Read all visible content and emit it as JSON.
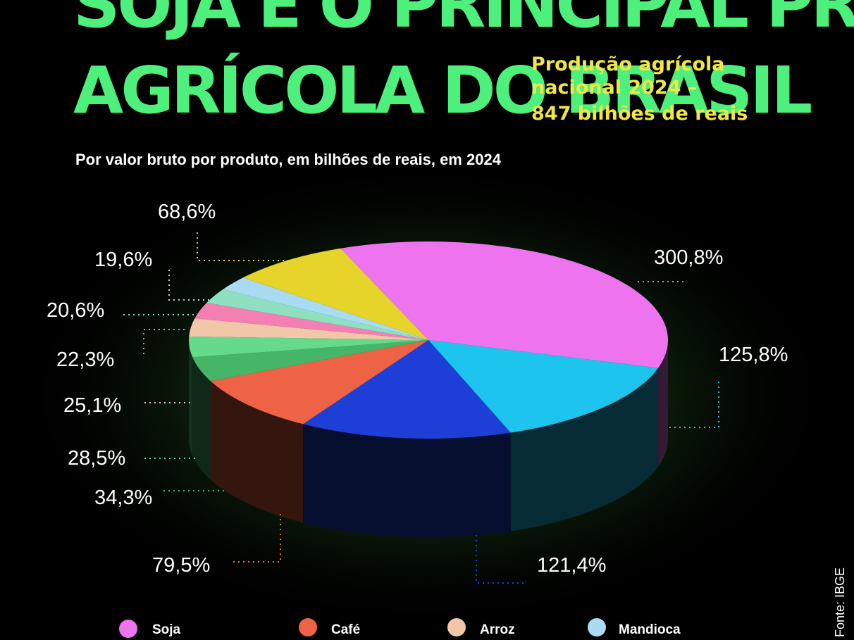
{
  "header": {
    "title_lines": [
      "SOJA É O PRINCIPAL PRODUTO",
      "AGRÍCOLA DO BRASIL"
    ],
    "subtitle_lines": [
      "Produção agrícola",
      "nacional 2024 –",
      "847 bilhões de reais"
    ]
  },
  "caption": "Por valor bruto por produto, em bilhões de reais, em 2024",
  "source": "Fonte: IBGE",
  "legend": [
    {
      "name": "Soja",
      "color": "#ee74ef"
    },
    {
      "name": "Café",
      "color": "#ee6345"
    },
    {
      "name": "Arroz",
      "color": "#f2c6a8"
    },
    {
      "name": "Mandioca",
      "color": "#a9dcf2"
    }
  ],
  "chart_data": {
    "type": "pie",
    "style": "3d",
    "title": "SOJA É O PRINCIPAL PRODUTO AGRÍCOLA DO BRASIL",
    "subtitle": "Por valor bruto por produto, em bilhões de reais, em 2024",
    "total_label": "Produção agrícola nacional 2024 – 847 bilhões de reais",
    "slices": [
      {
        "label": "300,8%",
        "value": 300.8,
        "color": "#ee74ef",
        "series": "Soja"
      },
      {
        "label": "125,8%",
        "value": 125.8,
        "color": "#1cc4ee",
        "series": ""
      },
      {
        "label": "121,4%",
        "value": 121.4,
        "color": "#1d3fd8",
        "series": ""
      },
      {
        "label": "79,5%",
        "value": 79.5,
        "color": "#ee6345",
        "series": "Café"
      },
      {
        "label": "34,3%",
        "value": 34.3,
        "color": "#45b568",
        "series": ""
      },
      {
        "label": "28,5%",
        "value": 28.5,
        "color": "#64da8a",
        "series": ""
      },
      {
        "label": "25,1%",
        "value": 25.1,
        "color": "#f2c6a8",
        "series": "Arroz"
      },
      {
        "label": "22,3%",
        "value": 22.3,
        "color": "#f47fb3",
        "series": ""
      },
      {
        "label": "20,6%",
        "value": 20.6,
        "color": "#8fe0c0",
        "series": ""
      },
      {
        "label": "19,6%",
        "value": 19.6,
        "color": "#a9dcf2",
        "series": "Mandioca"
      },
      {
        "label": "68,6%",
        "value": 68.6,
        "color": "#e6d42a",
        "series": ""
      }
    ],
    "legend_placement": "bottom"
  }
}
